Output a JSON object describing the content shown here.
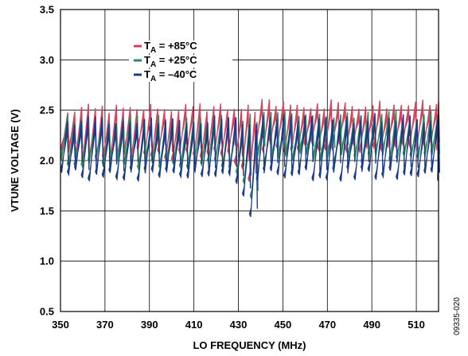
{
  "chart_data": {
    "type": "line",
    "xlabel": "LO FREQUENCY (MHz)",
    "ylabel": "VTUNE VOLTAGE (V)",
    "xlim": [
      350,
      520
    ],
    "ylim": [
      0.5,
      3.5
    ],
    "x_ticks": [
      350,
      370,
      390,
      410,
      430,
      450,
      470,
      490,
      510
    ],
    "y_ticks": [
      "0.5",
      "1.0",
      "1.5",
      "2.0",
      "2.5",
      "3.0",
      "3.5"
    ],
    "grid": true,
    "legend_position": "top-left",
    "series": [
      {
        "name_prefix": "T",
        "name_subscript": "A",
        "name_suffix": " = +85°C",
        "color": "#d9405f",
        "sawtooth": {
          "start": 350,
          "end": 520,
          "jump": 435,
          "period_low": 3.0,
          "period_high": 3.3,
          "low_before": 2.07,
          "high_before": 2.52,
          "low_after": 2.15,
          "high_after": 2.56,
          "dip_min": 1.82,
          "spike_max": 2.62
        }
      },
      {
        "name_prefix": "T",
        "name_subscript": "A",
        "name_suffix": " = +25°C",
        "color": "#2e8b57",
        "sawtooth": {
          "start": 350,
          "end": 520,
          "jump": 435.5,
          "period_low": 3.0,
          "period_high": 3.3,
          "low_before": 2.0,
          "high_before": 2.42,
          "low_after": 2.05,
          "high_after": 2.46,
          "dip_min": 1.65,
          "spike_max": 2.5
        }
      },
      {
        "name_prefix": "T",
        "name_subscript": "A",
        "name_suffix": " = –40°C",
        "color": "#1a3a8a",
        "sawtooth": {
          "start": 350,
          "end": 520,
          "jump": 436.5,
          "period_low": 3.0,
          "period_high": 3.3,
          "low_before": 1.88,
          "high_before": 2.4,
          "low_after": 1.88,
          "high_after": 2.42,
          "dip_min": 1.47,
          "spike_max": 2.45
        }
      }
    ]
  },
  "figure_id": "09335-020"
}
